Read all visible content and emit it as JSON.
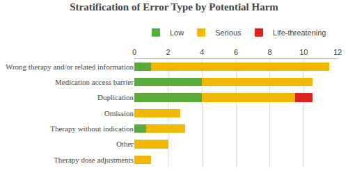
{
  "chart_data": {
    "type": "bar",
    "orientation": "horizontal",
    "stacked": true,
    "title": "Stratification of Error Type by Potential Harm",
    "categories": [
      "Wrong therapy and/or related information",
      "Medication access barrier",
      "Duplication",
      "Omission",
      "Therapy without indication",
      "Other",
      "Therapy dose adjustments"
    ],
    "series": [
      {
        "name": "Low",
        "color": "#5aaa3c",
        "values": [
          1.0,
          4.0,
          4.0,
          0.0,
          0.7,
          0.0,
          0.0
        ]
      },
      {
        "name": "Serious",
        "color": "#f0b800",
        "values": [
          10.5,
          6.5,
          5.5,
          2.7,
          2.3,
          2.0,
          1.0
        ]
      },
      {
        "name": "Life-threatening",
        "color": "#dd2222",
        "values": [
          0.0,
          0.0,
          1.0,
          0.0,
          0.0,
          0.0,
          0.0
        ]
      }
    ],
    "xlim": [
      0,
      12
    ],
    "xticks": [
      0,
      2,
      4,
      6,
      8,
      10,
      12
    ],
    "grid": true,
    "legend": "top"
  }
}
